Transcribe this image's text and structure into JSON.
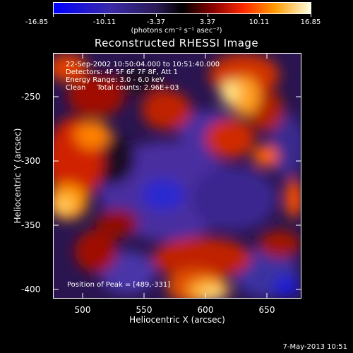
{
  "colorbar": {
    "ticks": [
      "-16.85",
      "-10.11",
      "-3.37",
      "3.37",
      "10.11",
      "16.85"
    ],
    "units": "(photons cm⁻² s⁻¹ asec⁻²)"
  },
  "title": "Reconstructed RHESSI Image",
  "info": {
    "time": "22-Sep-2002 10:50:04.000 to 10:51:40.000",
    "detectors": "Detectors: 4F 5F 6F 7F 8F, Att 1",
    "energy": "Energy Range: 3.0 - 6.0 keV",
    "clean": "Clean     Total counts: 2.96E+03"
  },
  "peak": "Position of Peak = [489,-331]",
  "axes": {
    "xlabel": "Heliocentric X (arcsec)",
    "ylabel": "Heliocentric Y (arcsec)",
    "xticks": [
      "500",
      "550",
      "600",
      "650"
    ],
    "yticks": [
      "-250",
      "-300",
      "-350",
      "-400"
    ]
  },
  "footer": "7-May-2013 10:51",
  "colors": {
    "colormap": [
      "#0000ff",
      "#3a2aa8",
      "#2a1a55",
      "#000000",
      "#8a0000",
      "#ff2a00",
      "#ff9a00",
      "#ffffe0"
    ]
  }
}
